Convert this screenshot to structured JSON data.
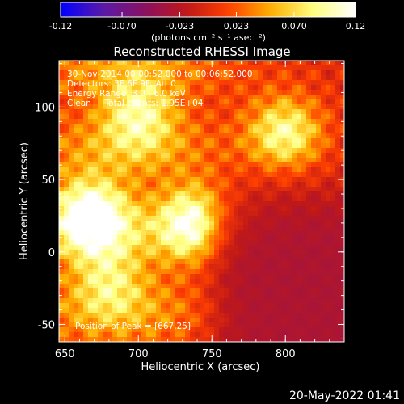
{
  "chart_data": {
    "type": "heatmap",
    "title": "Reconstructed RHESSI Image",
    "xlabel": "Heliocentric X (arcsec)",
    "ylabel": "Heliocentric Y (arcsec)",
    "xlim": [
      646,
      840
    ],
    "ylim": [
      -62,
      132
    ],
    "x_ticks": [
      650,
      700,
      750,
      800
    ],
    "y_ticks": [
      -50,
      0,
      50,
      100
    ],
    "colorbar": {
      "min": -0.12,
      "max": 0.12,
      "tick_labels": [
        "-0.12",
        "-0.070",
        "-0.023",
        "0.023",
        "0.070",
        "0.12"
      ],
      "tick_values": [
        -0.12,
        -0.07,
        -0.023,
        0.023,
        0.07,
        0.12
      ],
      "unit_label": "(photons cm⁻² s⁻¹ asec⁻²)"
    },
    "annotations": [
      "30-Nov-2014 00:00:52.000 to 00:06:52.000",
      "Detectors: 3F 6F 9F, Att 0",
      "Energy Range: 3.0 - 6.0 keV",
      "Clean     Total counts: 1.95E+04",
      "Position of Peak = [667,25]"
    ],
    "sources": [
      {
        "x": 667,
        "y": 25,
        "peak": 0.12
      },
      {
        "x": 740,
        "y": 20,
        "peak": 0.11
      },
      {
        "x": 800,
        "y": 82,
        "peak": 0.09
      },
      {
        "x": 700,
        "y": 95,
        "peak": 0.075
      },
      {
        "x": 680,
        "y": -20,
        "peak": 0.06
      }
    ],
    "background_negative_region": {
      "x_from": 750,
      "y_to": 40,
      "level": -0.03
    },
    "colormap": [
      "#0000ff",
      "#5a1aa8",
      "#8a1060",
      "#c01818",
      "#ff4000",
      "#ffb000",
      "#ffff80",
      "#ffffff"
    ]
  },
  "footer": {
    "timestamp": "20-May-2022 01:41"
  }
}
